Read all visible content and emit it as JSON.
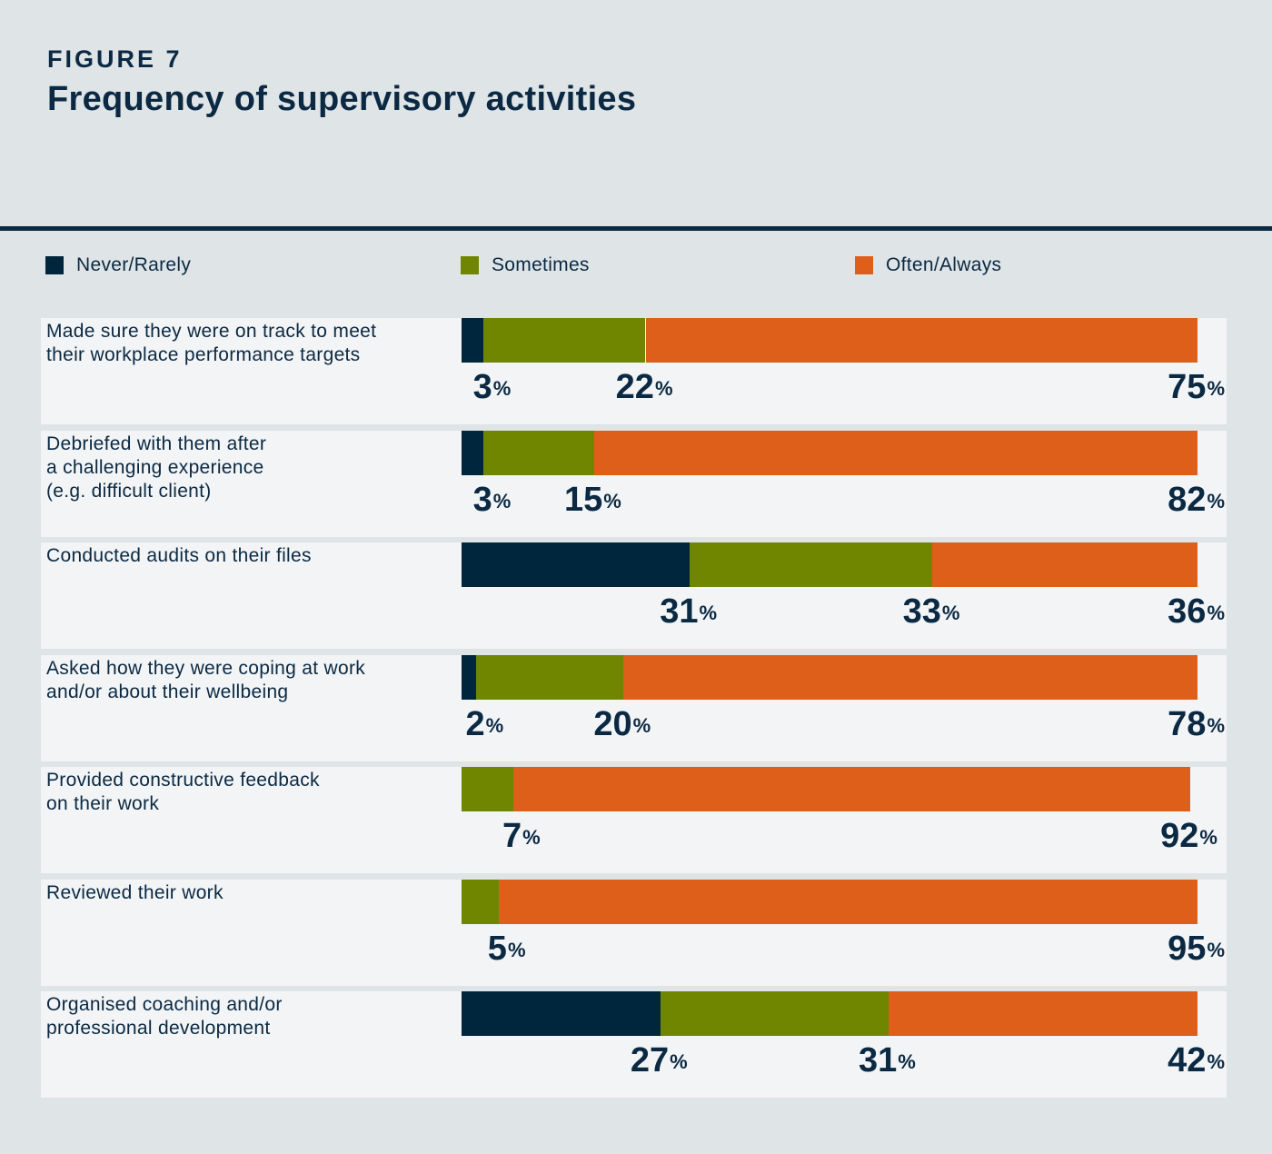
{
  "figure": {
    "label": "FIGURE 7",
    "title": "Frequency of supervisory activities"
  },
  "colors": {
    "never": "#00263e",
    "sometimes": "#718600",
    "often": "#dd5f19"
  },
  "chart_data": {
    "type": "bar",
    "orientation": "horizontal",
    "stacked": true,
    "title": "Frequency of supervisory activities",
    "legend": [
      "Never/Rarely",
      "Sometimes",
      "Often/Always"
    ],
    "categories": [
      "Made sure they were on track to meet\ntheir workplace performance targets",
      "Debriefed with them after\na challenging experience\n(e.g. difficult client)",
      "Conducted audits on their files",
      "Asked how they were coping at work\nand/or about their wellbeing",
      "Provided constructive feedback\non their work",
      "Reviewed their work",
      "Organised coaching and/or\nprofessional development"
    ],
    "series": [
      {
        "name": "Never/Rarely",
        "values": [
          3,
          3,
          31,
          2,
          0,
          0,
          27
        ]
      },
      {
        "name": "Sometimes",
        "values": [
          22,
          15,
          33,
          20,
          7,
          5,
          31
        ]
      },
      {
        "name": "Often/Always",
        "values": [
          75,
          82,
          36,
          78,
          92,
          95,
          42
        ]
      }
    ],
    "unit": "%"
  }
}
